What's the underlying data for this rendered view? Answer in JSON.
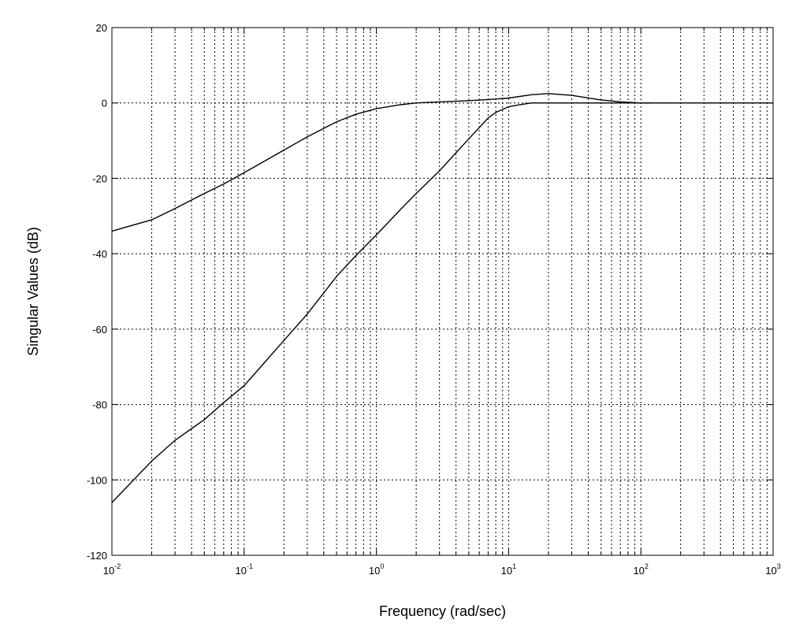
{
  "chart_data": {
    "type": "line",
    "title": "",
    "xlabel": "Frequency (rad/sec)",
    "ylabel": "Singular Values (dB)",
    "xscale": "log",
    "xlim": [
      0.01,
      1000
    ],
    "ylim": [
      -120,
      20
    ],
    "grid": true,
    "legend": "none",
    "xticks": [
      {
        "value": 0.01,
        "base": "10",
        "exp": "-2"
      },
      {
        "value": 0.1,
        "base": "10",
        "exp": "-1"
      },
      {
        "value": 1,
        "base": "10",
        "exp": "0"
      },
      {
        "value": 10,
        "base": "10",
        "exp": "1"
      },
      {
        "value": 100,
        "base": "10",
        "exp": "2"
      },
      {
        "value": 1000,
        "base": "10",
        "exp": "3"
      }
    ],
    "yticks": [
      {
        "value": 20,
        "label": "20"
      },
      {
        "value": 0,
        "label": "0"
      },
      {
        "value": -20,
        "label": "-20"
      },
      {
        "value": -40,
        "label": "-40"
      },
      {
        "value": -60,
        "label": "-60"
      },
      {
        "value": -80,
        "label": "-80"
      },
      {
        "value": -100,
        "label": "-100"
      },
      {
        "value": -120,
        "label": "-120"
      }
    ],
    "series": [
      {
        "x": [
          0.01,
          0.02,
          0.03,
          0.05,
          0.07,
          0.1,
          0.15,
          0.2,
          0.3,
          0.5,
          0.7,
          1,
          1.5,
          2,
          3,
          5,
          7,
          10,
          15,
          20,
          30,
          50,
          70,
          100,
          120
        ],
        "y": [
          -34,
          -31,
          -28,
          -24,
          -21.5,
          -18.5,
          -15,
          -12.5,
          -9,
          -5,
          -3,
          -1.5,
          -0.5,
          0,
          0.3,
          0.6,
          0.9,
          1.3,
          2.2,
          2.5,
          2,
          0.8,
          0.3,
          0,
          0
        ]
      },
      {
        "x": [
          0.01,
          0.02,
          0.03,
          0.05,
          0.07,
          0.1,
          0.15,
          0.2,
          0.3,
          0.5,
          0.7,
          1,
          1.5,
          2,
          3,
          5,
          7,
          8,
          10,
          12,
          15,
          20,
          30,
          50,
          100,
          1000
        ],
        "y": [
          -106,
          -95,
          -89.5,
          -84,
          -79.5,
          -75,
          -68,
          -63,
          -56,
          -46,
          -40.5,
          -35,
          -28.5,
          -24,
          -18,
          -9.5,
          -4,
          -2.5,
          -1,
          -0.5,
          0,
          0,
          0,
          0,
          0,
          0
        ]
      }
    ]
  }
}
